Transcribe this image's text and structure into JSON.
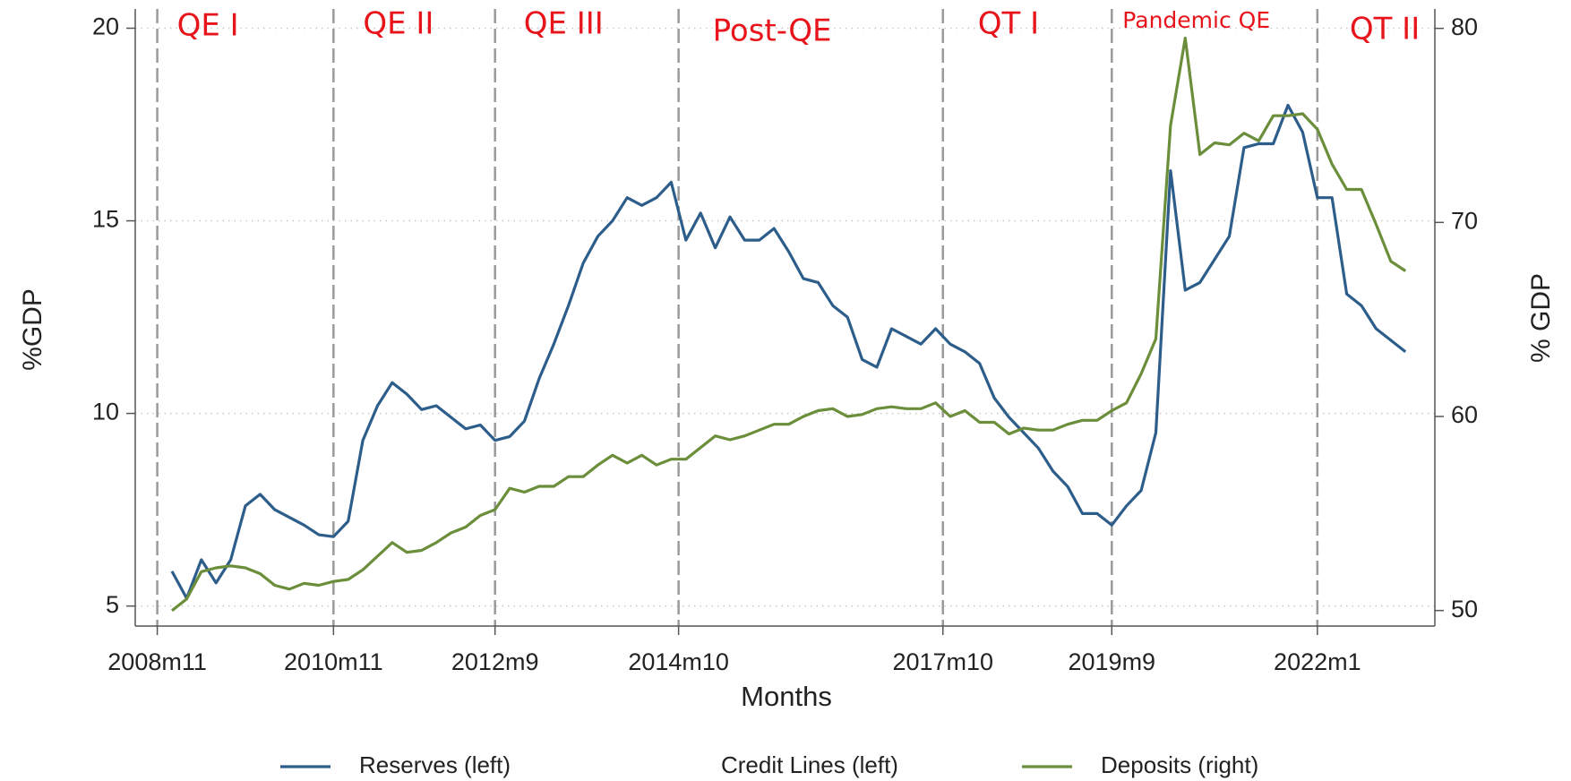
{
  "chart_data": {
    "type": "line",
    "xlabel": "Months",
    "ylabel": "%GDP",
    "y2label": "% GDP",
    "x": [
      "2009m1",
      "2009m3",
      "2009m5",
      "2009m7",
      "2009m9",
      "2009m11",
      "2010m1",
      "2010m3",
      "2010m5",
      "2010m7",
      "2010m9",
      "2010m11",
      "2011m1",
      "2011m3",
      "2011m5",
      "2011m7",
      "2011m9",
      "2011m11",
      "2012m1",
      "2012m3",
      "2012m5",
      "2012m7",
      "2012m9",
      "2012m11",
      "2013m1",
      "2013m3",
      "2013m5",
      "2013m7",
      "2013m9",
      "2013m11",
      "2014m1",
      "2014m3",
      "2014m5",
      "2014m7",
      "2014m9",
      "2014m11",
      "2015m1",
      "2015m3",
      "2015m5",
      "2015m7",
      "2015m9",
      "2015m11",
      "2016m1",
      "2016m3",
      "2016m5",
      "2016m7",
      "2016m9",
      "2016m11",
      "2017m1",
      "2017m3",
      "2017m5",
      "2017m7",
      "2017m9",
      "2017m11",
      "2018m1",
      "2018m3",
      "2018m5",
      "2018m7",
      "2018m9",
      "2018m11",
      "2019m1",
      "2019m3",
      "2019m5",
      "2019m7",
      "2019m9",
      "2019m11",
      "2020m1",
      "2020m3",
      "2020m5",
      "2020m7",
      "2020m9",
      "2020m11",
      "2021m1",
      "2021m3",
      "2021m5",
      "2021m7",
      "2021m9",
      "2021m11",
      "2022m1",
      "2022m3",
      "2022m5",
      "2022m7",
      "2022m9",
      "2022m11",
      "2023m1"
    ],
    "series": [
      {
        "name": "Reserves (left)",
        "color": "#2d5d8a",
        "axis": "y",
        "values": [
          5.9,
          5.2,
          6.2,
          5.6,
          6.2,
          7.6,
          7.9,
          7.5,
          7.3,
          7.1,
          6.85,
          6.8,
          7.2,
          9.3,
          10.2,
          10.8,
          10.5,
          10.1,
          10.2,
          9.9,
          9.6,
          9.7,
          9.3,
          9.4,
          9.8,
          10.9,
          11.8,
          12.8,
          13.9,
          14.6,
          15.0,
          15.6,
          15.4,
          15.6,
          16.0,
          14.5,
          15.2,
          14.3,
          15.1,
          14.5,
          14.5,
          14.8,
          14.2,
          13.5,
          13.4,
          12.8,
          12.5,
          11.4,
          11.2,
          12.2,
          12.0,
          11.8,
          12.2,
          11.8,
          11.6,
          11.3,
          10.4,
          9.9,
          9.5,
          9.1,
          8.5,
          8.1,
          7.4,
          7.4,
          7.1,
          7.6,
          8.0,
          9.5,
          16.3,
          13.2,
          13.4,
          14.0,
          14.6,
          16.9,
          17.0,
          17.0,
          18.0,
          17.3,
          15.6,
          15.6,
          13.1,
          12.8,
          12.2,
          11.9,
          11.6
        ]
      },
      {
        "name": "Credit Lines (left)",
        "color": "#ffffff",
        "axis": "y",
        "values": [
          null,
          null,
          null,
          null,
          null,
          null,
          null,
          null,
          null,
          null,
          null,
          null,
          null,
          null,
          null,
          null,
          null,
          null,
          null,
          null,
          null,
          null,
          null,
          null,
          null,
          null,
          null,
          null,
          null,
          null,
          null,
          null,
          null,
          null,
          null,
          null,
          null,
          null,
          null,
          null,
          null,
          null,
          null,
          null,
          null,
          null,
          null,
          null,
          null,
          null,
          null,
          null,
          null,
          null,
          null,
          null,
          null,
          null,
          null,
          null,
          null,
          null,
          null,
          null,
          null,
          null,
          null,
          null,
          null,
          null,
          null,
          null,
          null,
          null,
          null,
          null,
          null,
          null,
          null,
          null,
          null,
          null,
          null,
          null,
          null
        ]
      },
      {
        "name": "Deposits (right)",
        "color": "#6a8e3a",
        "axis": "y2",
        "values": [
          50.0,
          50.6,
          52.0,
          52.2,
          52.3,
          52.2,
          51.9,
          51.3,
          51.1,
          51.4,
          51.3,
          51.5,
          51.6,
          52.1,
          52.8,
          53.5,
          53.0,
          53.1,
          53.5,
          54.0,
          54.3,
          54.9,
          55.2,
          56.3,
          56.1,
          56.4,
          56.4,
          56.9,
          56.9,
          57.5,
          58.0,
          57.6,
          58.0,
          57.5,
          57.8,
          57.8,
          58.4,
          59.0,
          58.8,
          59.0,
          59.3,
          59.6,
          59.6,
          60.0,
          60.3,
          60.4,
          60.0,
          60.1,
          60.4,
          60.5,
          60.4,
          60.4,
          60.7,
          60.0,
          60.3,
          59.7,
          59.7,
          59.1,
          59.4,
          59.3,
          59.3,
          59.6,
          59.8,
          59.8,
          60.3,
          60.7,
          62.2,
          64.0,
          75.0,
          79.5,
          73.5,
          74.1,
          74.0,
          74.6,
          74.2,
          75.5,
          75.5,
          75.6,
          74.8,
          73.0,
          71.7,
          71.7,
          69.9,
          68.0,
          67.5
        ]
      }
    ],
    "xlim": [
      "2008m8",
      "2023m5"
    ],
    "xticks": [
      "2008m11",
      "2010m11",
      "2012m9",
      "2014m10",
      "2017m10",
      "2019m9",
      "2022m1"
    ],
    "x_event_lines": true,
    "ylim": [
      4.48,
      20.5
    ],
    "yticks": [
      5,
      10,
      15,
      20
    ],
    "y2lim": [
      49.2,
      81
    ],
    "y2ticks": [
      50,
      60,
      70,
      80
    ],
    "grid": true,
    "legend": "bottom",
    "annotation_color": "#e8141b",
    "annotations": [
      "QE I",
      "QE II",
      "QE III",
      "Post-QE",
      "QT I",
      "Pandemic QE",
      "QT II"
    ]
  }
}
